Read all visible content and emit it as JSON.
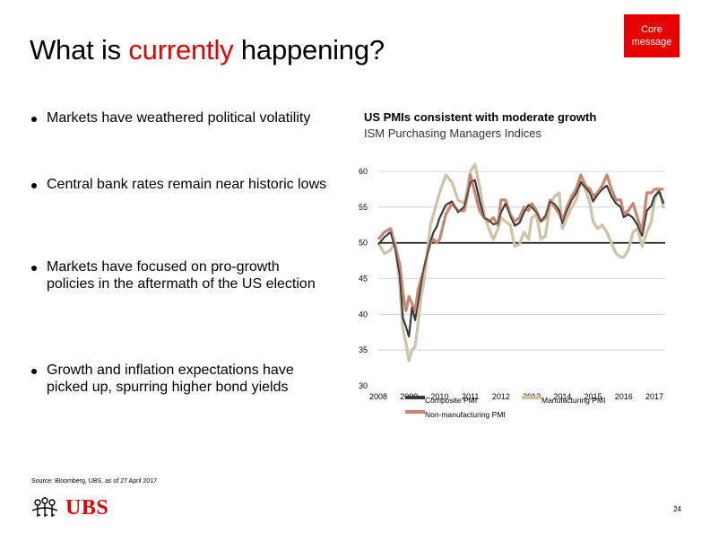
{
  "header": {
    "title_pre": "What is ",
    "title_highlight": "currently",
    "title_post": " happening?",
    "core_line1": "Core",
    "core_line2": "message"
  },
  "bullets": [
    "Markets have weathered political volatility",
    "Central bank rates remain near historic lows",
    "Markets have focused on pro-growth policies in the aftermath of the US election",
    "Growth and inflation expectations have picked up, spurring higher bond yields"
  ],
  "chart_data": {
    "type": "line",
    "title": "US PMIs consistent with moderate growth",
    "subtitle": "ISM Purchasing Managers Indices",
    "ylim": [
      30,
      60
    ],
    "yticks": [
      30,
      35,
      40,
      45,
      50,
      55,
      60
    ],
    "xlim": [
      2008,
      2017.35
    ],
    "xticks": [
      "2008",
      "2009",
      "2010",
      "2011",
      "2012",
      "2013",
      "2014",
      "2015",
      "2016",
      "2017"
    ],
    "grid": true,
    "reference_line": 50,
    "colors": {
      "composite": "#3a3a3a",
      "manufacturing": "#cfc3a6",
      "non_manufacturing": "#c9866e",
      "grid": "#cccccc"
    },
    "series": [
      {
        "name": "Composite PMI",
        "points": [
          [
            2008.0,
            49.8
          ],
          [
            2008.2,
            50.8
          ],
          [
            2008.4,
            51.5
          ],
          [
            2008.55,
            49.2
          ],
          [
            2008.7,
            45.5
          ],
          [
            2008.8,
            39.5
          ],
          [
            2008.9,
            38.3
          ],
          [
            2009.0,
            36.9
          ],
          [
            2009.1,
            41.0
          ],
          [
            2009.2,
            39.2
          ],
          [
            2009.3,
            41.8
          ],
          [
            2009.4,
            44.5
          ],
          [
            2009.5,
            46.8
          ],
          [
            2009.6,
            48.5
          ],
          [
            2009.7,
            50.2
          ],
          [
            2009.8,
            51.5
          ],
          [
            2009.9,
            52.2
          ],
          [
            2010.0,
            53.5
          ],
          [
            2010.2,
            55.3
          ],
          [
            2010.4,
            55.8
          ],
          [
            2010.6,
            54.3
          ],
          [
            2010.8,
            55.0
          ],
          [
            2010.9,
            56.8
          ],
          [
            2011.0,
            58.5
          ],
          [
            2011.15,
            58.8
          ],
          [
            2011.3,
            56.0
          ],
          [
            2011.45,
            53.5
          ],
          [
            2011.6,
            53.2
          ],
          [
            2011.75,
            52.6
          ],
          [
            2011.9,
            52.8
          ],
          [
            2012.0,
            54.3
          ],
          [
            2012.15,
            55.5
          ],
          [
            2012.3,
            53.8
          ],
          [
            2012.45,
            52.4
          ],
          [
            2012.6,
            52.8
          ],
          [
            2012.75,
            54.3
          ],
          [
            2012.9,
            55.3
          ],
          [
            2013.0,
            55.0
          ],
          [
            2013.15,
            54.3
          ],
          [
            2013.3,
            53.0
          ],
          [
            2013.45,
            53.8
          ],
          [
            2013.6,
            55.8
          ],
          [
            2013.75,
            55.4
          ],
          [
            2013.9,
            54.5
          ],
          [
            2014.0,
            52.8
          ],
          [
            2014.15,
            54.6
          ],
          [
            2014.3,
            56.0
          ],
          [
            2014.45,
            57.0
          ],
          [
            2014.6,
            58.5
          ],
          [
            2014.75,
            57.8
          ],
          [
            2014.9,
            57.0
          ],
          [
            2015.0,
            55.8
          ],
          [
            2015.15,
            56.8
          ],
          [
            2015.3,
            57.5
          ],
          [
            2015.45,
            58.0
          ],
          [
            2015.6,
            56.5
          ],
          [
            2015.75,
            55.5
          ],
          [
            2015.9,
            55.0
          ],
          [
            2016.0,
            53.6
          ],
          [
            2016.15,
            54.0
          ],
          [
            2016.3,
            53.5
          ],
          [
            2016.45,
            52.5
          ],
          [
            2016.6,
            51.0
          ],
          [
            2016.75,
            54.5
          ],
          [
            2016.9,
            55.2
          ],
          [
            2017.0,
            56.5
          ],
          [
            2017.15,
            57.2
          ],
          [
            2017.3,
            55.5
          ]
        ]
      },
      {
        "name": "Manufacturing PMI",
        "points": [
          [
            2008.0,
            50.0
          ],
          [
            2008.2,
            48.5
          ],
          [
            2008.4,
            49.0
          ],
          [
            2008.55,
            50.0
          ],
          [
            2008.7,
            44.0
          ],
          [
            2008.8,
            38.0
          ],
          [
            2008.9,
            36.0
          ],
          [
            2009.0,
            33.5
          ],
          [
            2009.1,
            35.0
          ],
          [
            2009.2,
            35.5
          ],
          [
            2009.3,
            39.0
          ],
          [
            2009.4,
            42.5
          ],
          [
            2009.5,
            45.0
          ],
          [
            2009.6,
            49.0
          ],
          [
            2009.7,
            52.5
          ],
          [
            2009.8,
            54.0
          ],
          [
            2009.9,
            55.5
          ],
          [
            2010.0,
            57.0
          ],
          [
            2010.2,
            59.5
          ],
          [
            2010.4,
            58.5
          ],
          [
            2010.6,
            56.0
          ],
          [
            2010.8,
            55.5
          ],
          [
            2010.9,
            57.5
          ],
          [
            2011.0,
            60.0
          ],
          [
            2011.15,
            61.0
          ],
          [
            2011.3,
            58.0
          ],
          [
            2011.45,
            54.0
          ],
          [
            2011.6,
            52.0
          ],
          [
            2011.75,
            50.5
          ],
          [
            2011.9,
            52.0
          ],
          [
            2012.0,
            53.5
          ],
          [
            2012.15,
            53.0
          ],
          [
            2012.3,
            52.5
          ],
          [
            2012.45,
            49.5
          ],
          [
            2012.6,
            49.8
          ],
          [
            2012.75,
            51.5
          ],
          [
            2012.9,
            50.5
          ],
          [
            2013.0,
            53.5
          ],
          [
            2013.15,
            54.0
          ],
          [
            2013.3,
            50.5
          ],
          [
            2013.45,
            51.0
          ],
          [
            2013.6,
            55.5
          ],
          [
            2013.75,
            56.5
          ],
          [
            2013.9,
            57.0
          ],
          [
            2014.0,
            52.0
          ],
          [
            2014.15,
            53.5
          ],
          [
            2014.3,
            55.0
          ],
          [
            2014.45,
            56.0
          ],
          [
            2014.6,
            58.5
          ],
          [
            2014.75,
            57.5
          ],
          [
            2014.9,
            55.5
          ],
          [
            2015.0,
            53.0
          ],
          [
            2015.15,
            52.0
          ],
          [
            2015.3,
            52.5
          ],
          [
            2015.45,
            51.5
          ],
          [
            2015.6,
            50.0
          ],
          [
            2015.75,
            48.5
          ],
          [
            2015.9,
            48.0
          ],
          [
            2016.0,
            48.0
          ],
          [
            2016.15,
            49.0
          ],
          [
            2016.3,
            51.5
          ],
          [
            2016.45,
            52.0
          ],
          [
            2016.6,
            49.5
          ],
          [
            2016.75,
            51.5
          ],
          [
            2016.9,
            53.0
          ],
          [
            2017.0,
            56.0
          ],
          [
            2017.15,
            57.5
          ],
          [
            2017.3,
            54.8
          ]
        ]
      },
      {
        "name": "Non-manufacturing PMI",
        "points": [
          [
            2008.0,
            50.5
          ],
          [
            2008.2,
            51.5
          ],
          [
            2008.4,
            52.0
          ],
          [
            2008.55,
            49.5
          ],
          [
            2008.7,
            47.0
          ],
          [
            2008.8,
            43.0
          ],
          [
            2008.9,
            40.5
          ],
          [
            2009.0,
            42.5
          ],
          [
            2009.1,
            41.5
          ],
          [
            2009.2,
            40.5
          ],
          [
            2009.3,
            43.5
          ],
          [
            2009.4,
            45.0
          ],
          [
            2009.5,
            46.5
          ],
          [
            2009.6,
            48.5
          ],
          [
            2009.7,
            50.0
          ],
          [
            2009.8,
            50.5
          ],
          [
            2009.9,
            50.0
          ],
          [
            2010.0,
            50.5
          ],
          [
            2010.2,
            54.0
          ],
          [
            2010.4,
            55.5
          ],
          [
            2010.6,
            54.5
          ],
          [
            2010.8,
            54.5
          ],
          [
            2010.9,
            56.5
          ],
          [
            2011.0,
            59.5
          ],
          [
            2011.15,
            57.0
          ],
          [
            2011.3,
            54.5
          ],
          [
            2011.45,
            53.5
          ],
          [
            2011.6,
            53.0
          ],
          [
            2011.75,
            53.5
          ],
          [
            2011.9,
            52.5
          ],
          [
            2012.0,
            56.0
          ],
          [
            2012.15,
            56.0
          ],
          [
            2012.3,
            54.0
          ],
          [
            2012.45,
            53.0
          ],
          [
            2012.6,
            53.5
          ],
          [
            2012.75,
            55.0
          ],
          [
            2012.9,
            54.5
          ],
          [
            2013.0,
            55.5
          ],
          [
            2013.15,
            54.5
          ],
          [
            2013.3,
            53.0
          ],
          [
            2013.45,
            53.5
          ],
          [
            2013.6,
            56.0
          ],
          [
            2013.75,
            55.0
          ],
          [
            2013.9,
            54.0
          ],
          [
            2014.0,
            53.0
          ],
          [
            2014.15,
            55.0
          ],
          [
            2014.3,
            56.5
          ],
          [
            2014.45,
            57.5
          ],
          [
            2014.6,
            59.5
          ],
          [
            2014.75,
            58.0
          ],
          [
            2014.9,
            57.5
          ],
          [
            2015.0,
            56.5
          ],
          [
            2015.15,
            57.0
          ],
          [
            2015.3,
            58.0
          ],
          [
            2015.45,
            59.5
          ],
          [
            2015.6,
            57.5
          ],
          [
            2015.75,
            56.0
          ],
          [
            2015.9,
            56.0
          ],
          [
            2016.0,
            54.0
          ],
          [
            2016.15,
            54.5
          ],
          [
            2016.3,
            55.5
          ],
          [
            2016.45,
            53.5
          ],
          [
            2016.6,
            51.5
          ],
          [
            2016.75,
            57.0
          ],
          [
            2016.9,
            57.0
          ],
          [
            2017.0,
            57.5
          ],
          [
            2017.15,
            57.5
          ],
          [
            2017.3,
            57.5
          ]
        ]
      }
    ]
  },
  "footer": {
    "source": "Source: Bloomberg, UBS, as of 27 April 2017",
    "logo_text": "UBS",
    "page_number": "24"
  }
}
